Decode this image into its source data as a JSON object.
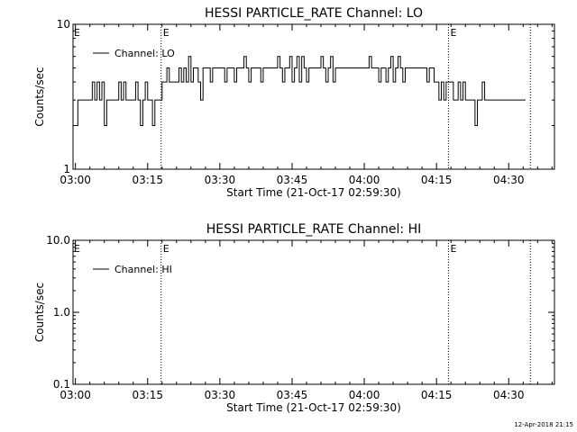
{
  "footer": {
    "timestamp": "12-Apr-2018 21:15"
  },
  "chart_data": [
    {
      "type": "line",
      "title": "HESSI PARTICLE_RATE Channel: LO",
      "xlabel": "Start Time (21-Oct-17 02:59:30)",
      "ylabel": "Counts/sec",
      "yscale": "log",
      "ylim": [
        1,
        10
      ],
      "y_tick_values": [
        1,
        10
      ],
      "y_tick_labels": [
        "1",
        "10"
      ],
      "xlim_minutes_after_0300": [
        -0.5,
        99.5
      ],
      "x_tick_values_minutes": [
        0,
        15,
        30,
        45,
        60,
        75,
        90
      ],
      "x_tick_labels": [
        "03:00",
        "03:15",
        "03:30",
        "03:45",
        "04:00",
        "04:15",
        "04:30"
      ],
      "event_lines": [
        {
          "minutes": 17.8,
          "label": "E"
        },
        {
          "minutes": 77.5,
          "label": "E"
        },
        {
          "minutes": 94.5,
          "label": ""
        }
      ],
      "legend": {
        "position": "top-left",
        "entries": [
          "Channel: LO"
        ]
      },
      "series": [
        {
          "name": "Channel: LO",
          "x": [
            0,
            0.5,
            1,
            1.5,
            2,
            2.5,
            3,
            3.5,
            4,
            4.5,
            5,
            5.5,
            6,
            6.5,
            7,
            7.5,
            8,
            8.5,
            9,
            9.5,
            10,
            10.5,
            11,
            11.5,
            12,
            12.5,
            13,
            13.5,
            14,
            14.5,
            15,
            15.5,
            16,
            16.5,
            17,
            17.5,
            18,
            18.5,
            19,
            19.5,
            20,
            20.5,
            21,
            21.5,
            22,
            22.5,
            23,
            23.5,
            24,
            24.5,
            25,
            25.5,
            26,
            26.5,
            27,
            27.5,
            28,
            28.5,
            29,
            29.5,
            30,
            30.5,
            31,
            31.5,
            32,
            32.5,
            33,
            33.5,
            34,
            34.5,
            35,
            35.5,
            36,
            36.5,
            37,
            37.5,
            38,
            38.5,
            39,
            39.5,
            40,
            40.5,
            41,
            41.5,
            42,
            42.5,
            43,
            43.5,
            44,
            44.5,
            45,
            45.5,
            46,
            46.5,
            47,
            47.5,
            48,
            48.5,
            49,
            49.5,
            50,
            50.5,
            51,
            51.5,
            52,
            52.5,
            53,
            53.5,
            54,
            54.5,
            55,
            55.5,
            56,
            56.5,
            57,
            57.5,
            58,
            58.5,
            59,
            59.5,
            60,
            60.5,
            61,
            61.5,
            62,
            62.5,
            63,
            63.5,
            64,
            64.5,
            65,
            65.5,
            66,
            66.5,
            67,
            67.5,
            68,
            68.5,
            69,
            69.5,
            70,
            70.5,
            71,
            71.5,
            72,
            72.5,
            73,
            73.5,
            74,
            74.5,
            75,
            75.5,
            76,
            76.5,
            77,
            77.5,
            78,
            78.5,
            79,
            79.5,
            80,
            80.5,
            81,
            81.5,
            82,
            82.5,
            83,
            83.5,
            84,
            84.5,
            85,
            85.5,
            86,
            86.5,
            87,
            87.5,
            88,
            88.5,
            89,
            89.5,
            90,
            90.5,
            91,
            91.5,
            92,
            92.5,
            93
          ],
          "y": [
            2,
            3,
            3,
            3,
            3,
            3,
            3,
            4,
            3,
            4,
            3,
            4,
            2,
            3,
            3,
            3,
            3,
            3,
            4,
            3,
            4,
            3,
            3,
            3,
            3,
            4,
            3,
            2,
            3,
            4,
            3,
            3,
            2,
            3,
            3,
            3,
            4,
            4,
            5,
            4,
            4,
            4,
            4,
            5,
            4,
            5,
            4,
            6,
            4,
            5,
            5,
            4,
            3,
            5,
            5,
            5,
            4,
            5,
            5,
            5,
            5,
            5,
            4,
            5,
            5,
            5,
            4,
            5,
            5,
            5,
            6,
            5,
            4,
            5,
            5,
            5,
            5,
            4,
            5,
            5,
            5,
            5,
            5,
            5,
            6,
            5,
            4,
            5,
            5,
            6,
            4,
            5,
            6,
            4,
            6,
            5,
            4,
            5,
            5,
            5,
            5,
            5,
            6,
            5,
            4,
            5,
            6,
            4,
            5,
            5,
            5,
            5,
            5,
            5,
            5,
            5,
            5,
            5,
            5,
            5,
            5,
            5,
            6,
            5,
            5,
            5,
            4,
            5,
            5,
            4,
            5,
            6,
            4,
            5,
            6,
            5,
            4,
            5,
            5,
            5,
            5,
            5,
            5,
            5,
            5,
            5,
            4,
            5,
            5,
            4,
            4,
            3,
            4,
            3,
            4,
            4,
            4,
            3,
            3,
            4,
            3,
            4,
            3,
            3,
            3,
            3,
            2,
            3,
            3,
            4,
            3,
            3,
            3,
            3,
            3,
            3,
            3,
            3,
            3,
            3,
            3,
            3,
            3,
            3,
            3,
            3,
            3
          ]
        }
      ]
    },
    {
      "type": "line",
      "title": "HESSI PARTICLE_RATE Channel: HI",
      "xlabel": "Start Time (21-Oct-17 02:59:30)",
      "ylabel": "Counts/sec",
      "yscale": "log",
      "ylim": [
        0.1,
        10
      ],
      "y_tick_values": [
        0.1,
        1,
        10
      ],
      "y_tick_labels": [
        "0.1",
        "1.0",
        "10.0"
      ],
      "xlim_minutes_after_0300": [
        -0.5,
        99.5
      ],
      "x_tick_values_minutes": [
        0,
        15,
        30,
        45,
        60,
        75,
        90
      ],
      "x_tick_labels": [
        "03:00",
        "03:15",
        "03:30",
        "03:45",
        "04:00",
        "04:15",
        "04:30"
      ],
      "event_lines": [
        {
          "minutes": 17.8,
          "label": "E"
        },
        {
          "minutes": 77.5,
          "label": "E"
        },
        {
          "minutes": 94.5,
          "label": ""
        }
      ],
      "legend": {
        "position": "top-left",
        "entries": [
          "Channel: HI"
        ]
      },
      "series": [
        {
          "name": "Channel: HI",
          "x": [],
          "y": []
        }
      ]
    }
  ]
}
